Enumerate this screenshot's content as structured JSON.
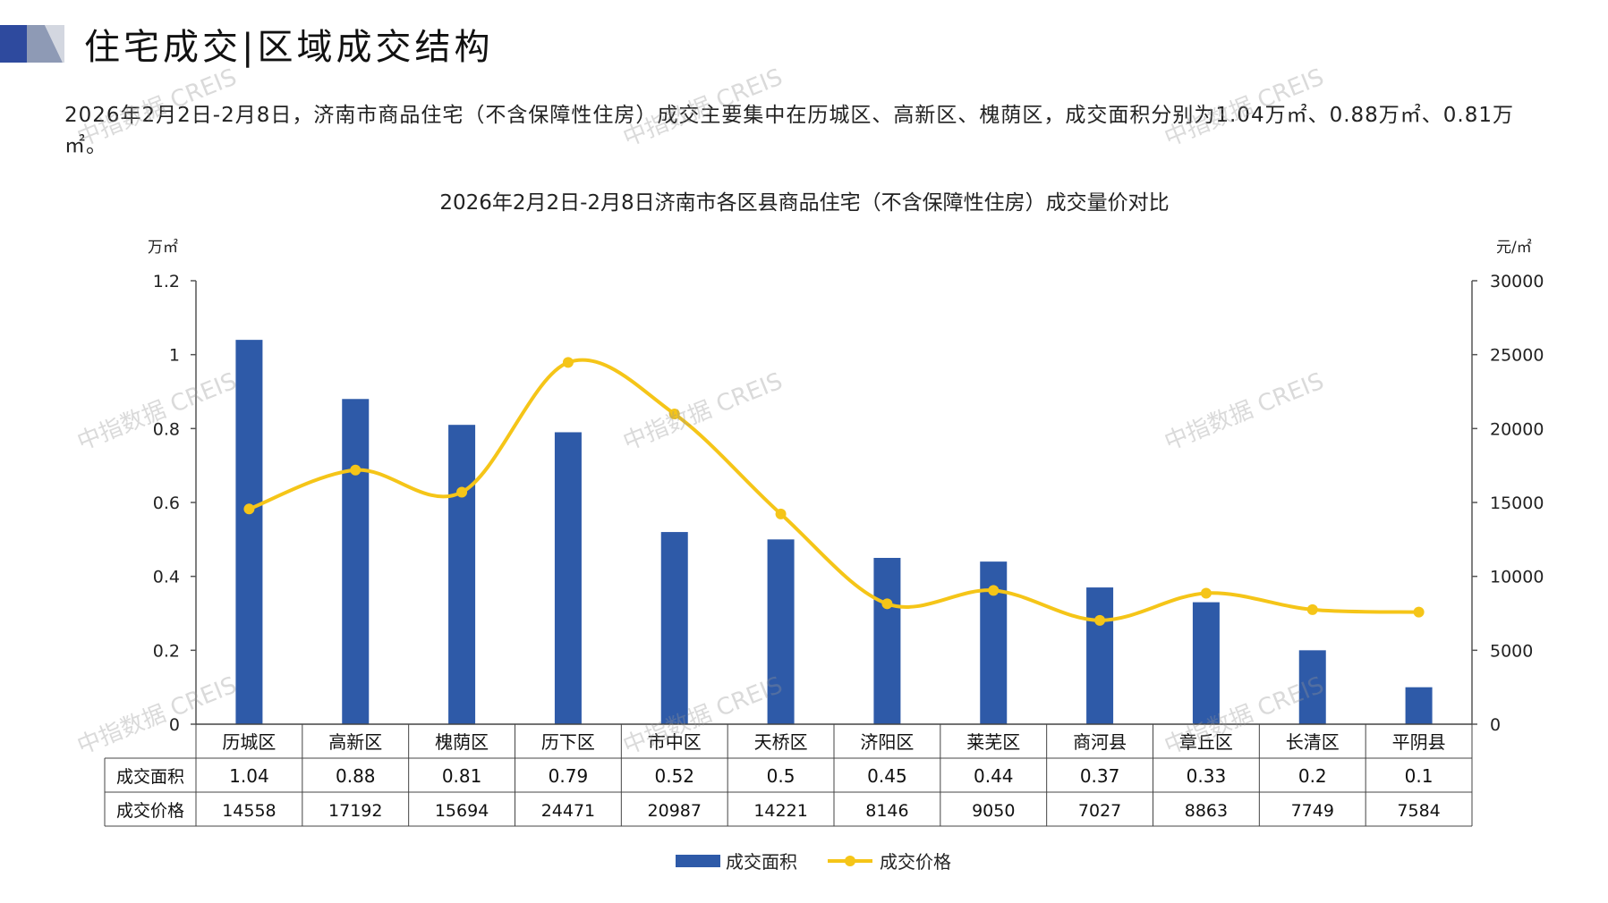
{
  "header": {
    "title": "住宅成交|区域成交结构",
    "summary": "2026年2月2日-2月8日，济南市商品住宅（不含保障性住房）成交主要集中在历城区、高新区、槐荫区，成交面积分别为1.04万㎡、0.88万㎡、0.81万㎡。"
  },
  "watermark": "中指数据 CREIS",
  "colors": {
    "bar": "#2E5AA8",
    "line": "#F5C518",
    "axis": "#555555",
    "grid": "#444444"
  },
  "chart_data": {
    "type": "bar",
    "title": "2026年2月2日-2月8日济南市各区县商品住宅（不含保障性住房）成交量价对比",
    "ylabel": "万㎡",
    "y2label": "元/㎡",
    "ylim": [
      0,
      1.2
    ],
    "y2lim": [
      0,
      30000
    ],
    "yticks": [
      "1.2",
      "1",
      "0.8",
      "0.6",
      "0.4",
      "0.2",
      "0"
    ],
    "yticks_values": [
      1.2,
      1,
      0.8,
      0.6,
      0.4,
      0.2,
      0
    ],
    "y2ticks": [
      "30000",
      "25000",
      "20000",
      "15000",
      "10000",
      "5000",
      "0"
    ],
    "y2ticks_values": [
      30000,
      25000,
      20000,
      15000,
      10000,
      5000,
      0
    ],
    "categories": [
      "历城区",
      "高新区",
      "槐荫区",
      "历下区",
      "市中区",
      "天桥区",
      "济阳区",
      "莱芜区",
      "商河县",
      "章丘区",
      "长清区",
      "平阴县"
    ],
    "series": [
      {
        "name": "成交面积",
        "type": "bar",
        "axis": "left",
        "values": [
          1.04,
          0.88,
          0.81,
          0.79,
          0.52,
          0.5,
          0.45,
          0.44,
          0.37,
          0.33,
          0.2,
          0.1
        ],
        "labels": [
          "1.04",
          "0.88",
          "0.81",
          "0.79",
          "0.52",
          "0.5",
          "0.45",
          "0.44",
          "0.37",
          "0.33",
          "0.2",
          "0.1"
        ]
      },
      {
        "name": "成交价格",
        "type": "line",
        "axis": "right",
        "values": [
          14558,
          17192,
          15694,
          24471,
          20987,
          14221,
          8146,
          9050,
          7027,
          8863,
          7749,
          7584
        ],
        "labels": [
          "14558",
          "17192",
          "15694",
          "24471",
          "20987",
          "14221",
          "8146",
          "9050",
          "7027",
          "8863",
          "7749",
          "7584"
        ]
      }
    ],
    "legend": [
      "成交面积",
      "成交价格"
    ],
    "legend_position": "bottom-center"
  }
}
